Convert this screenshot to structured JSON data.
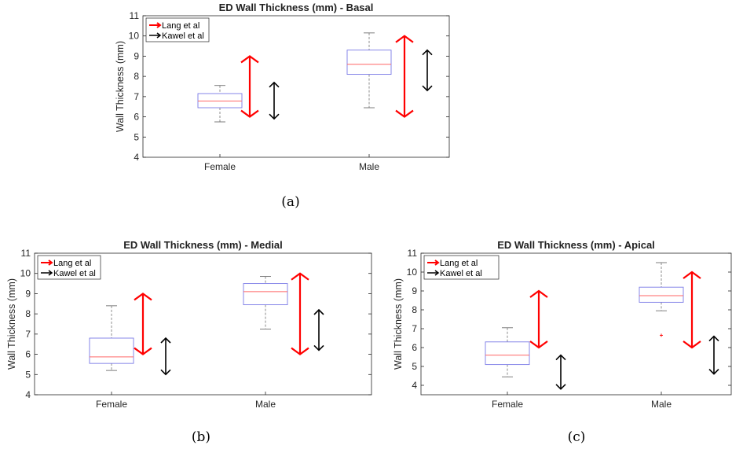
{
  "chart_data": [
    {
      "type": "box",
      "title": "ED Wall Thickness (mm) - Basal",
      "ylabel": "Wall Thickness (mm)",
      "ylim": [
        4,
        11
      ],
      "yticks": [
        "4",
        "5",
        "6",
        "7",
        "8",
        "9",
        "10",
        "11"
      ],
      "categories": [
        "Female",
        "Male"
      ],
      "boxes": [
        {
          "whisker_low": 5.75,
          "q1": 6.45,
          "median": 6.78,
          "q3": 7.15,
          "whisker_high": 7.55,
          "outliers": []
        },
        {
          "whisker_low": 6.45,
          "q1": 8.1,
          "median": 8.6,
          "q3": 9.3,
          "whisker_high": 10.15,
          "outliers": []
        }
      ],
      "legend": [
        "Lang et al",
        "Kawel et al"
      ],
      "legend_position": "top-left",
      "reference_ranges": {
        "Lang et al": [
          [
            6,
            9
          ],
          [
            6,
            10
          ]
        ],
        "Kawel et al": [
          [
            5.9,
            7.7
          ],
          [
            7.3,
            9.3
          ]
        ]
      },
      "caption": "(a)"
    },
    {
      "type": "box",
      "title": "ED Wall Thickness (mm) - Medial",
      "ylabel": "Wall Thickness (mm)",
      "ylim": [
        4,
        11
      ],
      "yticks": [
        "4",
        "5",
        "6",
        "7",
        "8",
        "9",
        "10",
        "11"
      ],
      "categories": [
        "Female",
        "Male"
      ],
      "boxes": [
        {
          "whisker_low": 5.2,
          "q1": 5.55,
          "median": 5.87,
          "q3": 6.8,
          "whisker_high": 8.4,
          "outliers": []
        },
        {
          "whisker_low": 7.25,
          "q1": 8.45,
          "median": 9.1,
          "q3": 9.5,
          "whisker_high": 9.85,
          "outliers": []
        }
      ],
      "legend": [
        "Lang et al",
        "Kawel et al"
      ],
      "legend_position": "top-left",
      "reference_ranges": {
        "Lang et al": [
          [
            6,
            9
          ],
          [
            6,
            10
          ]
        ],
        "Kawel et al": [
          [
            5,
            6.8
          ],
          [
            6.2,
            8.2
          ]
        ]
      },
      "caption": "(b)"
    },
    {
      "type": "box",
      "title": "ED Wall Thickness (mm) - Apical",
      "ylabel": "Wall Thickness (mm)",
      "ylim": [
        3.5,
        11
      ],
      "yticks": [
        "4",
        "5",
        "6",
        "7",
        "8",
        "9",
        "10",
        "11"
      ],
      "categories": [
        "Female",
        "Male"
      ],
      "boxes": [
        {
          "whisker_low": 4.45,
          "q1": 5.1,
          "median": 5.6,
          "q3": 6.3,
          "whisker_high": 7.05,
          "outliers": []
        },
        {
          "whisker_low": 7.95,
          "q1": 8.4,
          "median": 8.75,
          "q3": 9.2,
          "whisker_high": 10.5,
          "outliers": [
            6.65
          ]
        }
      ],
      "legend": [
        "Lang et al",
        "Kawel et al"
      ],
      "legend_position": "top-left",
      "reference_ranges": {
        "Lang et al": [
          [
            6,
            9
          ],
          [
            6,
            10
          ]
        ],
        "Kawel et al": [
          [
            3.8,
            5.6
          ],
          [
            4.6,
            6.6
          ]
        ]
      },
      "caption": "(c)"
    }
  ],
  "colors": {
    "box": "#7a7ae6",
    "median": "#ff6666",
    "whisker": "#707070",
    "lang": "#ff0000",
    "kawel": "#000000",
    "axes": "#262626"
  }
}
